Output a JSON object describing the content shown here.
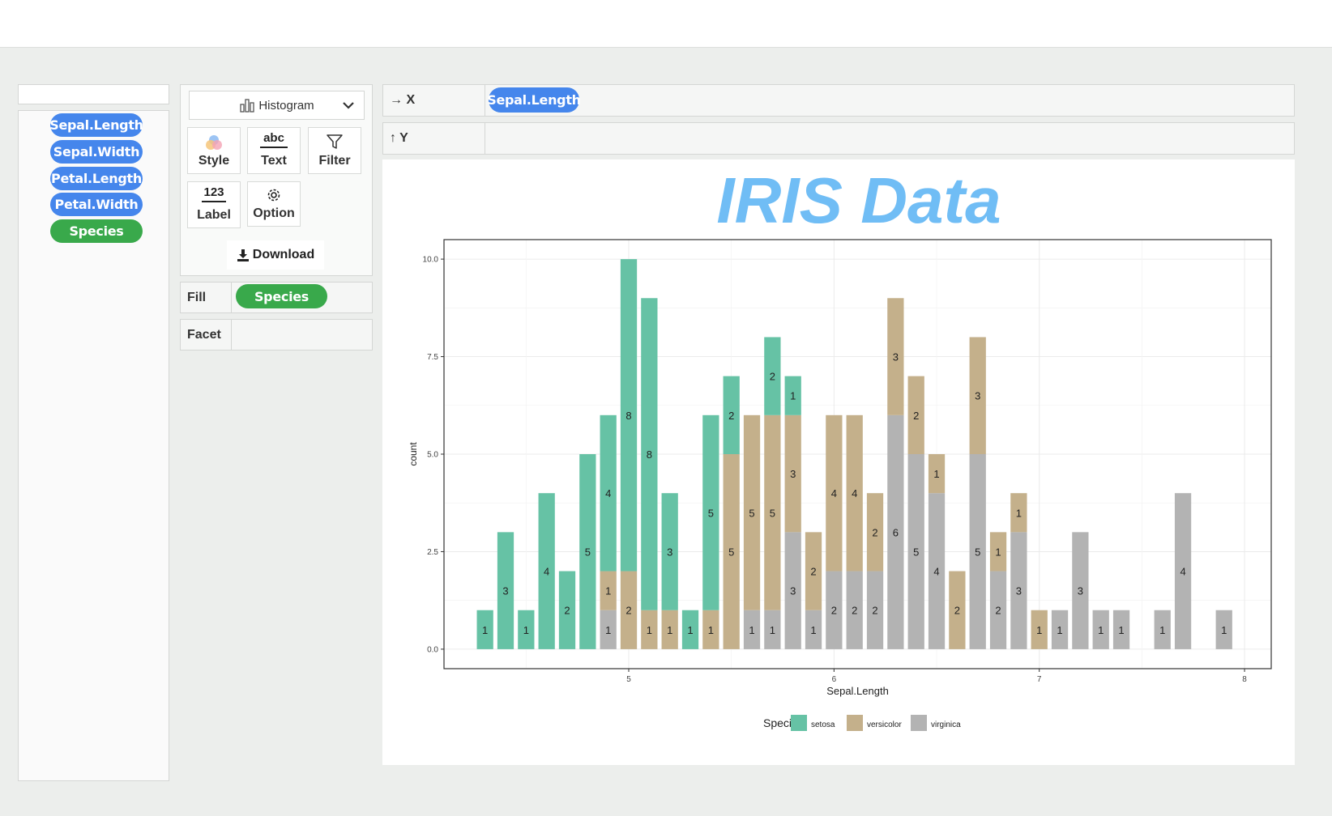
{
  "variables": [
    "Sepal.Length",
    "Sepal.Width",
    "Petal.Length",
    "Petal.Width",
    "Species"
  ],
  "chart_type_select": "Histogram",
  "tools": {
    "style": "Style",
    "text": "Text",
    "filter": "Filter",
    "label": "Label",
    "label_icon_text": "123",
    "text_icon_text": "abc",
    "option": "Option"
  },
  "download_label": "Download",
  "fill": {
    "label": "Fill",
    "value": "Species"
  },
  "facet": {
    "label": "Facet"
  },
  "x_axis": {
    "label": "→ X",
    "value": "Sepal.Length"
  },
  "y_axis": {
    "label": "↑ Y"
  },
  "colors": {
    "accent_blue": "#4586ec",
    "accent_green": "#39a94b",
    "title": "#70bdf5",
    "setosa": "#66c2a5",
    "versicolor": "#c4b08b",
    "virginica": "#b3b3b3"
  },
  "chart_data": {
    "type": "bar",
    "stacked": true,
    "title": "IRIS Data",
    "xlabel": "Sepal.Length",
    "ylabel": "count",
    "xlim": [
      4.1,
      8.13
    ],
    "ylim": [
      -0.5,
      10.5
    ],
    "xticks": [
      5,
      6,
      7,
      8
    ],
    "yticks": [
      "0.0",
      "2.5",
      "5.0",
      "7.5",
      "10.0"
    ],
    "ytick_values": [
      0,
      2.5,
      5,
      7.5,
      10
    ],
    "legend": {
      "title": "Species",
      "position": "bottom"
    },
    "x": [
      4.3,
      4.4,
      4.5,
      4.6,
      4.7,
      4.8,
      4.9,
      5.0,
      5.1,
      5.2,
      5.3,
      5.4,
      5.5,
      5.6,
      5.7,
      5.8,
      5.9,
      6.0,
      6.1,
      6.2,
      6.3,
      6.4,
      6.5,
      6.6,
      6.7,
      6.8,
      6.9,
      7.0,
      7.1,
      7.2,
      7.3,
      7.4,
      7.6,
      7.7,
      7.9
    ],
    "series": [
      {
        "name": "virginica",
        "values": [
          0,
          0,
          0,
          0,
          0,
          0,
          1,
          0,
          0,
          0,
          0,
          0,
          0,
          1,
          1,
          3,
          1,
          2,
          2,
          2,
          6,
          5,
          4,
          0,
          5,
          2,
          3,
          0,
          1,
          3,
          1,
          1,
          1,
          4,
          1
        ]
      },
      {
        "name": "versicolor",
        "values": [
          0,
          0,
          0,
          0,
          0,
          0,
          1,
          2,
          1,
          1,
          0,
          1,
          5,
          5,
          5,
          3,
          2,
          4,
          4,
          2,
          3,
          2,
          1,
          2,
          3,
          1,
          1,
          1,
          0,
          0,
          0,
          0,
          0,
          0,
          0
        ]
      },
      {
        "name": "setosa",
        "values": [
          1,
          3,
          1,
          4,
          2,
          5,
          4,
          8,
          8,
          3,
          1,
          5,
          2,
          0,
          2,
          1,
          0,
          0,
          0,
          0,
          0,
          0,
          0,
          0,
          0,
          0,
          0,
          0,
          0,
          0,
          0,
          0,
          0,
          0,
          0
        ]
      }
    ]
  }
}
